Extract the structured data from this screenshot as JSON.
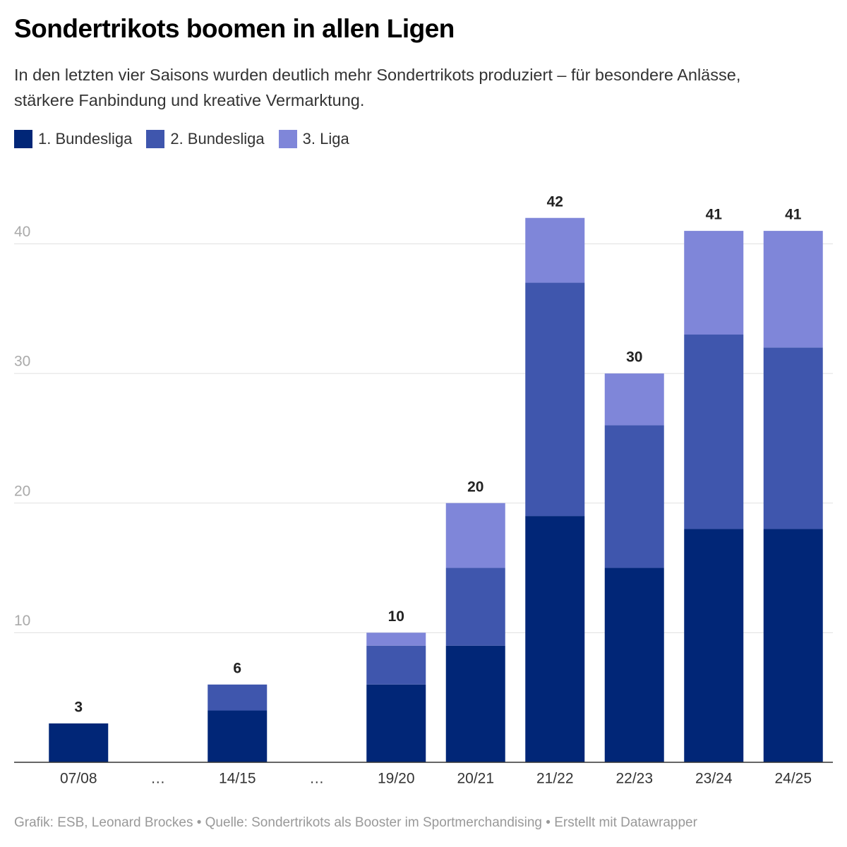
{
  "chart_data": {
    "type": "stacked-bar",
    "title": "Sondertrikots boomen in allen Ligen",
    "subtitle": "In den letzten vier Saisons wurden deutlich mehr Sondertrikots produziert – für besondere Anlässe, stärkere Fanbindung und kreative Vermarktung.",
    "footer": "Grafik: ESB, Leonard Brockes • Quelle: Sondertrikots als Booster im Sportmerchandising • Erstellt mit Datawrapper",
    "categories": [
      "07/08",
      "…",
      "14/15",
      "…",
      "19/20",
      "20/21",
      "21/22",
      "22/23",
      "23/24",
      "24/25"
    ],
    "series": [
      {
        "name": "1. Bundesliga",
        "color": "#012677",
        "values": [
          3,
          null,
          4,
          null,
          6,
          9,
          19,
          15,
          18,
          18
        ]
      },
      {
        "name": "2. Bundesliga",
        "color": "#3f56ad",
        "values": [
          0,
          null,
          2,
          null,
          3,
          6,
          18,
          11,
          15,
          14
        ]
      },
      {
        "name": "3. Liga",
        "color": "#7f86d9",
        "values": [
          0,
          null,
          0,
          null,
          1,
          5,
          5,
          4,
          8,
          9
        ]
      }
    ],
    "totals": [
      3,
      null,
      6,
      null,
      10,
      20,
      42,
      30,
      41,
      41
    ],
    "ylim": [
      0,
      44
    ],
    "yticks": [
      10,
      20,
      30,
      40
    ],
    "grid": true
  }
}
